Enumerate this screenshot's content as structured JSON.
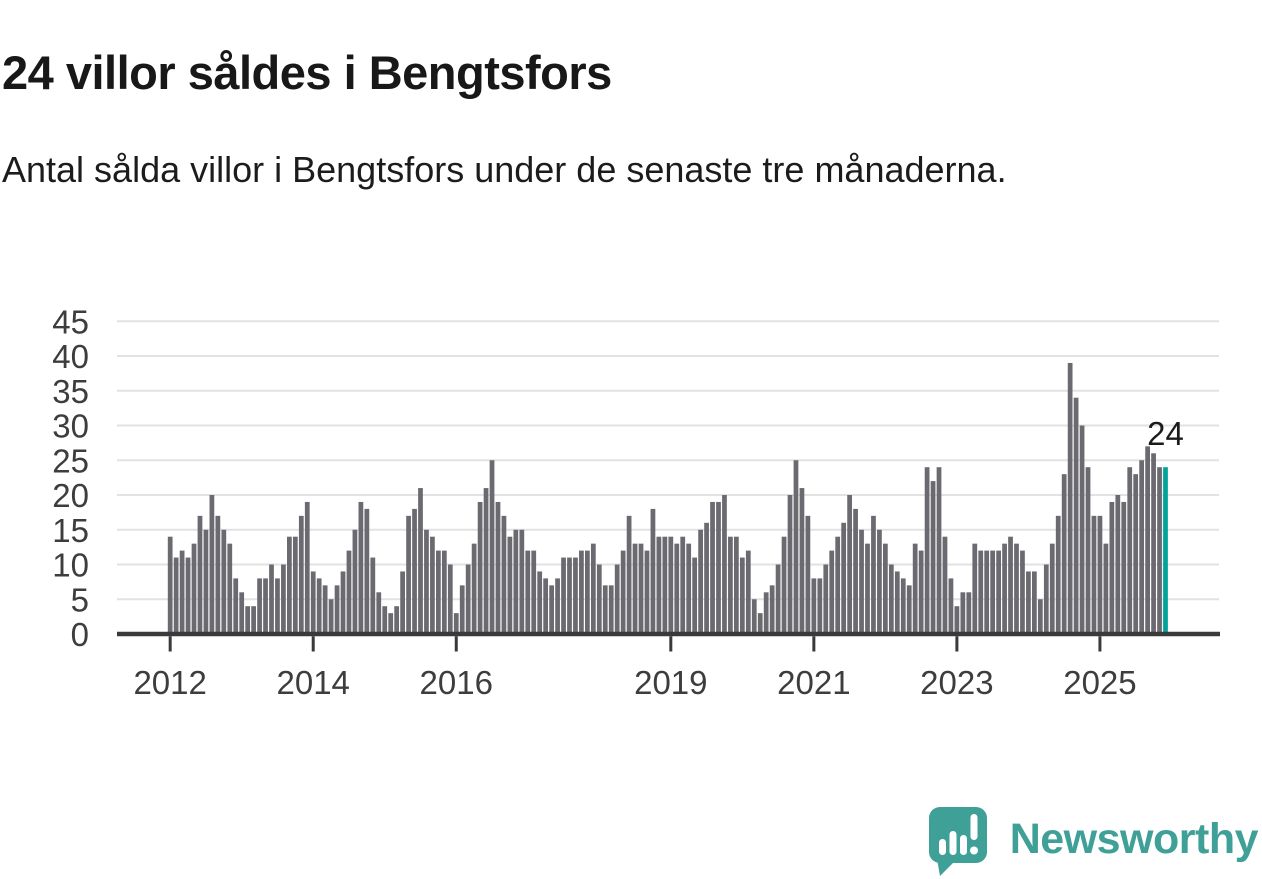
{
  "header": {
    "title": "24 villor såldes i Bengtsfors",
    "subtitle": "Antal sålda villor i Bengtsfors under de senaste tre månaderna."
  },
  "chart_data": {
    "type": "bar",
    "title": "24 villor såldes i Bengtsfors",
    "subtitle": "Antal sålda villor i Bengtsfors under de senaste tre månaderna.",
    "xlabel": "",
    "ylabel": "",
    "x_interval": "monthly",
    "x_start": "2012-01",
    "x_end": "2025-12",
    "values_by_year": {
      "2012": [
        14,
        11,
        12,
        11,
        13,
        17,
        15,
        20,
        17,
        15,
        13,
        8
      ],
      "2013": [
        6,
        4,
        4,
        8,
        8,
        10,
        8,
        10,
        14,
        14,
        17,
        19
      ],
      "2014": [
        9,
        8,
        7,
        5,
        7,
        9,
        12,
        15,
        19,
        18,
        11,
        6
      ],
      "2015": [
        4,
        3,
        4,
        9,
        17,
        18,
        21,
        15,
        14,
        12,
        12,
        10
      ],
      "2016": [
        3,
        7,
        10,
        13,
        19,
        21,
        25,
        19,
        17,
        14,
        15,
        15
      ],
      "2017": [
        12,
        12,
        9,
        8,
        7,
        8,
        11,
        11,
        11,
        12,
        12,
        13
      ],
      "2018": [
        10,
        7,
        7,
        10,
        12,
        17,
        13,
        13,
        12,
        18,
        14,
        14
      ],
      "2019": [
        14,
        13,
        14,
        13,
        11,
        15,
        16,
        19,
        19,
        20,
        14,
        14
      ],
      "2020": [
        11,
        12,
        5,
        3,
        6,
        7,
        10,
        14,
        20,
        25,
        21,
        17
      ],
      "2021": [
        8,
        8,
        10,
        12,
        14,
        16,
        20,
        18,
        15,
        13,
        17,
        15
      ],
      "2022": [
        13,
        10,
        9,
        8,
        7,
        13,
        12,
        24,
        22,
        24,
        14,
        8
      ],
      "2023": [
        4,
        6,
        6,
        13,
        12,
        12,
        12,
        12,
        13,
        14,
        13,
        12
      ],
      "2024": [
        9,
        9,
        5,
        10,
        13,
        17,
        23,
        39,
        34,
        30,
        24,
        17
      ],
      "2025": [
        17,
        13,
        19,
        20,
        19,
        24,
        23,
        25,
        27,
        26,
        24,
        24
      ]
    },
    "x_ticks": [
      {
        "label": "2012",
        "month_index": 0
      },
      {
        "label": "2014",
        "month_index": 24
      },
      {
        "label": "2016",
        "month_index": 48
      },
      {
        "label": "2019",
        "month_index": 84
      },
      {
        "label": "2021",
        "month_index": 108
      },
      {
        "label": "2023",
        "month_index": 132
      },
      {
        "label": "2025",
        "month_index": 156
      }
    ],
    "y_ticks": [
      0,
      5,
      10,
      15,
      20,
      25,
      30,
      35,
      40,
      45
    ],
    "ylim": [
      0,
      47
    ],
    "grid": true,
    "legend": "none",
    "highlight_last_bar": true,
    "annotation": {
      "text": "24",
      "bar_index": 167
    }
  },
  "footer": {
    "brand": "Newsworthy"
  },
  "icons": {
    "logo": "newsworthy-speech-bubble-bar-chart-icon"
  },
  "colors": {
    "background": "#ffffff",
    "title_text": "#181818",
    "body_text": "#1c1c1c",
    "bar": "#6a6a70",
    "highlight": "#00a49b",
    "grid": "#e2e2e2",
    "axis": "#3a3a3a",
    "tick_label": "#3d3d3d",
    "annotation": "#1b1b1b",
    "logo_teal": "#3fa098"
  }
}
